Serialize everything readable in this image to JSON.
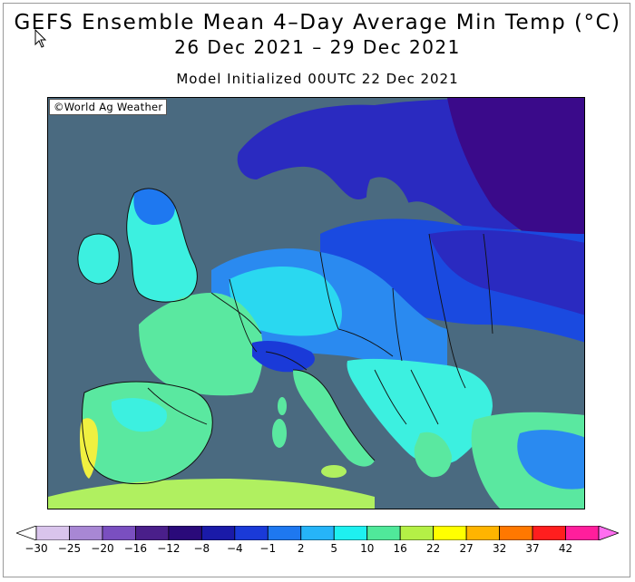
{
  "header": {
    "title": "GEFS Ensemble Mean 4–Day Average Min Temp (°C)",
    "date_range": "26 Dec 2021 – 29 Dec 2021",
    "model_init": "Model Initialized 00UTC 22 Dec 2021"
  },
  "map": {
    "credit": "©World Ag Weather",
    "ocean_color": "#4a6a80",
    "border_color": "#111111"
  },
  "legend": {
    "labels": [
      "−30",
      "−25",
      "−20",
      "−16",
      "−12",
      "−8",
      "−4",
      "−1",
      "2",
      "5",
      "10",
      "16",
      "22",
      "27",
      "32",
      "37",
      "42"
    ],
    "colors": [
      "#ffffff",
      "#d9c4ec",
      "#a887d4",
      "#7a4fc0",
      "#4a1f8a",
      "#2a0a7a",
      "#1a1aa8",
      "#1a3ad8",
      "#1e78f0",
      "#26b4f8",
      "#1ef0f0",
      "#50e89a",
      "#b4f046",
      "#ffff00",
      "#ffb400",
      "#ff7800",
      "#ff1e1e",
      "#ff1e9c",
      "#ff6ef0"
    ]
  },
  "palette": {
    "deep_purple": "#3a0a8a",
    "indigo": "#2a2ac0",
    "blue": "#1a4ae0",
    "mid_blue": "#2a8af0",
    "cyan": "#2ad8f0",
    "aqua": "#3cf0e0",
    "green": "#5ae8a0",
    "yellow_green": "#b0f060",
    "yellow": "#f0f040"
  }
}
